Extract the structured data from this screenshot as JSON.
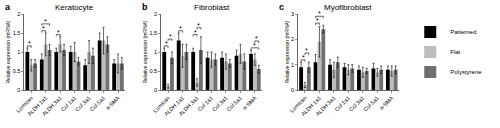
{
  "chart_data": [
    {
      "type": "bar",
      "label": "a",
      "title": "Keratocyte",
      "y_label": "Relative expression (mRNA)",
      "categories": [
        "Lumican",
        "ALDH 1a1",
        "ALDH 3a1",
        "Col 1a1",
        "Col 3a1",
        "Col 5a1",
        "α-SMA"
      ],
      "series": [
        {
          "name": "Patterned",
          "color": "#000000",
          "values": [
            1.0,
            0.8,
            1.0,
            1.0,
            0.65,
            1.3,
            0.7
          ],
          "errors": [
            0.1,
            0.15,
            0.1,
            0.15,
            0.15,
            0.2,
            0.1
          ]
        },
        {
          "name": "Flat",
          "color": "#bdbdbd",
          "values": [
            0.65,
            1.2,
            1.2,
            1.0,
            1.0,
            1.3,
            0.7
          ],
          "errors": [
            0.15,
            0.3,
            0.2,
            0.25,
            0.3,
            0.35,
            0.25
          ]
        },
        {
          "name": "Polystyrene",
          "color": "#707070",
          "values": [
            0.7,
            1.05,
            1.05,
            0.75,
            0.9,
            1.2,
            0.7
          ],
          "errors": [
            0.1,
            0.15,
            0.15,
            0.1,
            0.2,
            0.2,
            0.15
          ]
        }
      ],
      "significance": [
        {
          "category": "Lumican",
          "pair": [
            "Patterned",
            "Flat"
          ],
          "text": "*"
        },
        {
          "category": "ALDH 1a1",
          "pair": [
            "Patterned",
            "Flat"
          ],
          "text": "*"
        },
        {
          "category": "ALDH 1a1",
          "pair": [
            "Patterned",
            "Polystyrene"
          ],
          "text": "*"
        },
        {
          "category": "ALDH 3a1",
          "pair": [
            "Patterned",
            "Flat"
          ],
          "text": "*"
        }
      ],
      "ylim": [
        0,
        2
      ],
      "yticks": [
        0,
        0.5,
        1,
        1.5,
        2
      ],
      "grid": false
    },
    {
      "type": "bar",
      "label": "b",
      "title": "Fibroblast",
      "y_label": "Relative expression (mRNA)",
      "categories": [
        "Lumican",
        "ALDH 1a1",
        "ALDH 3a1",
        "Col 1a1",
        "Col 3a1",
        "Col 5a1",
        "α-SMA"
      ],
      "series": [
        {
          "name": "Patterned",
          "color": "#000000",
          "values": [
            1.0,
            1.3,
            1.0,
            0.85,
            0.85,
            0.9,
            0.95
          ],
          "errors": [
            0.1,
            0.2,
            0.1,
            0.15,
            0.15,
            0.15,
            0.1
          ]
        },
        {
          "name": "Flat",
          "color": "#bdbdbd",
          "values": [
            0.1,
            0.9,
            0.2,
            0.8,
            0.75,
            0.95,
            0.8
          ],
          "errors": [
            0.05,
            0.3,
            0.1,
            0.2,
            0.2,
            0.25,
            0.15
          ]
        },
        {
          "name": "Polystyrene",
          "color": "#707070",
          "values": [
            0.85,
            1.0,
            1.05,
            0.8,
            0.7,
            0.75,
            0.55
          ],
          "errors": [
            0.15,
            0.2,
            0.35,
            0.15,
            0.1,
            0.2,
            0.1
          ]
        }
      ],
      "significance": [
        {
          "category": "Lumican",
          "pair": [
            "Patterned",
            "Flat"
          ],
          "text": "*"
        },
        {
          "category": "Lumican",
          "pair": [
            "Flat",
            "Polystyrene"
          ],
          "text": "*"
        },
        {
          "category": "ALDH 1a1",
          "pair": [
            "Patterned",
            "Flat"
          ],
          "text": "*"
        },
        {
          "category": "ALDH 3a1",
          "pair": [
            "Patterned",
            "Flat"
          ],
          "text": "*"
        },
        {
          "category": "ALDH 3a1",
          "pair": [
            "Flat",
            "Polystyrene"
          ],
          "text": "*"
        },
        {
          "category": "α-SMA",
          "pair": [
            "Patterned",
            "Polystyrene"
          ],
          "text": "*"
        },
        {
          "category": "α-SMA",
          "pair": [
            "Flat",
            "Polystyrene"
          ],
          "text": "*"
        }
      ],
      "ylim": [
        0,
        2
      ],
      "yticks": [
        0,
        0.5,
        1,
        1.5,
        2
      ],
      "grid": false
    },
    {
      "type": "bar",
      "label": "c",
      "title": "Myofibroblast",
      "y_label": "Relative expression (mRNA)",
      "categories": [
        "Lumican",
        "ALDH 1a1",
        "ALDH 3a1",
        "Col 1a1",
        "Col 3a1",
        "Col 5a1",
        "α-SMA"
      ],
      "series": [
        {
          "name": "Patterned",
          "color": "#000000",
          "values": [
            0.9,
            1.1,
            1.0,
            0.9,
            0.8,
            0.85,
            0.8
          ],
          "errors": [
            0.2,
            0.3,
            0.2,
            0.15,
            0.15,
            0.2,
            0.15
          ]
        },
        {
          "name": "Flat",
          "color": "#bdbdbd",
          "values": [
            0.2,
            1.9,
            0.8,
            0.8,
            0.7,
            0.7,
            0.75
          ],
          "errors": [
            0.1,
            0.6,
            0.3,
            0.2,
            0.2,
            0.15,
            0.2
          ]
        },
        {
          "name": "Polystyrene",
          "color": "#707070",
          "values": [
            0.9,
            2.4,
            1.1,
            0.85,
            0.75,
            0.8,
            0.8
          ],
          "errors": [
            0.2,
            0.15,
            0.2,
            0.15,
            0.1,
            0.15,
            0.15
          ]
        }
      ],
      "significance": [
        {
          "category": "Lumican",
          "pair": [
            "Patterned",
            "Flat"
          ],
          "text": "*"
        },
        {
          "category": "Lumican",
          "pair": [
            "Flat",
            "Polystyrene"
          ],
          "text": "*"
        },
        {
          "category": "ALDH 1a1",
          "pair": [
            "Patterned",
            "Flat"
          ],
          "text": "*"
        },
        {
          "category": "ALDH 1a1",
          "pair": [
            "Patterned",
            "Polystyrene"
          ],
          "text": "*"
        }
      ],
      "ylim": [
        0,
        3
      ],
      "yticks": [
        0,
        1,
        2,
        3
      ],
      "grid": false,
      "legend": "right"
    }
  ]
}
